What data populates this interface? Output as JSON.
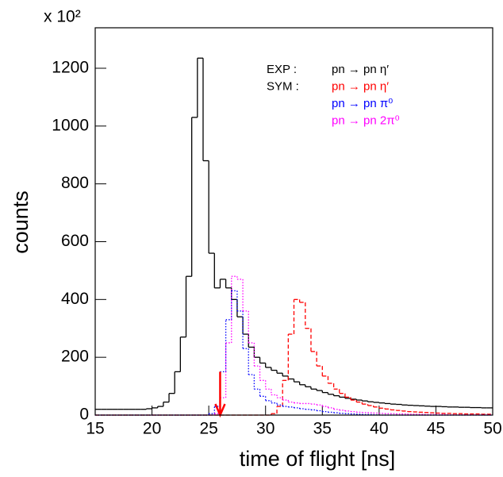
{
  "chart_data": {
    "type": "histogram",
    "x_label": "time of flight  [ns]",
    "y_label": "counts",
    "y_multiplier": "x 10²",
    "xlim": [
      15,
      50
    ],
    "ylim": [
      0,
      1340
    ],
    "xticks": [
      15,
      20,
      25,
      30,
      35,
      40,
      45,
      50
    ],
    "yticks": [
      0,
      200,
      400,
      600,
      800,
      1000,
      1200
    ],
    "bins": [
      15,
      15.5,
      16,
      16.5,
      17,
      17.5,
      18,
      18.5,
      19,
      19.5,
      20,
      20.5,
      21,
      21.5,
      22,
      22.5,
      23,
      23.5,
      24,
      24.5,
      25,
      25.5,
      26,
      26.5,
      27,
      27.5,
      28,
      28.5,
      29,
      29.5,
      30,
      30.5,
      31,
      31.5,
      32,
      32.5,
      33,
      33.5,
      34,
      34.5,
      35,
      35.5,
      36,
      36.5,
      37,
      37.5,
      38,
      38.5,
      39,
      39.5,
      40,
      40.5,
      41,
      41.5,
      42,
      42.5,
      43,
      43.5,
      44,
      44.5,
      45,
      45.5,
      46,
      46.5,
      47,
      47.5,
      48,
      48.5,
      49,
      49.5,
      50
    ],
    "series": [
      {
        "name": "pn → pn η′",
        "group": "EXP :",
        "color": "#000000",
        "style": "solid",
        "values": [
          20,
          20,
          20,
          20,
          20,
          20,
          20,
          20,
          20,
          22,
          25,
          30,
          45,
          75,
          150,
          270,
          480,
          1030,
          1235,
          880,
          560,
          440,
          470,
          440,
          400,
          340,
          280,
          235,
          200,
          180,
          165,
          155,
          145,
          135,
          125,
          115,
          105,
          98,
          90,
          85,
          78,
          72,
          67,
          62,
          58,
          55,
          52,
          49,
          46,
          44,
          42,
          40,
          38,
          37,
          35,
          34,
          33,
          32,
          31,
          30,
          30,
          29,
          28,
          28,
          27,
          27,
          26,
          26,
          25,
          25
        ]
      },
      {
        "name": "pn → pn η′",
        "group": "SYM :",
        "color": "#ff0000",
        "style": "dashed",
        "values": [
          0,
          0,
          0,
          0,
          0,
          0,
          0,
          0,
          0,
          0,
          0,
          0,
          0,
          0,
          0,
          0,
          0,
          0,
          0,
          0,
          0,
          0,
          0,
          0,
          0,
          0,
          0,
          0,
          0,
          0,
          0,
          5,
          30,
          120,
          280,
          400,
          390,
          300,
          220,
          170,
          135,
          110,
          90,
          75,
          62,
          52,
          45,
          38,
          33,
          28,
          24,
          21,
          18,
          16,
          14,
          12,
          11,
          10,
          9,
          8,
          7,
          6,
          6,
          5,
          5,
          4,
          4,
          4,
          3,
          3
        ]
      },
      {
        "name": "pn → pn π⁰",
        "color": "#0000ff",
        "style": "dotted",
        "values": [
          0,
          0,
          0,
          0,
          0,
          0,
          0,
          0,
          0,
          0,
          0,
          0,
          0,
          0,
          0,
          0,
          0,
          0,
          0,
          0,
          5,
          30,
          150,
          330,
          430,
          360,
          230,
          140,
          90,
          65,
          50,
          42,
          35,
          30,
          28,
          25,
          22,
          20,
          18,
          15,
          12,
          10,
          8,
          6,
          5,
          4,
          3,
          2,
          2,
          1,
          0,
          0,
          0,
          0,
          0,
          0,
          0,
          0,
          0,
          0,
          0,
          0,
          0,
          0,
          0,
          0,
          0,
          0,
          0,
          0
        ]
      },
      {
        "name": "pn → pn 2π⁰",
        "color": "#ff00ff",
        "style": "dotted",
        "values": [
          0,
          0,
          0,
          0,
          0,
          0,
          0,
          0,
          0,
          0,
          0,
          0,
          0,
          0,
          0,
          0,
          0,
          0,
          0,
          0,
          0,
          5,
          60,
          250,
          480,
          470,
          360,
          250,
          170,
          120,
          90,
          70,
          60,
          52,
          45,
          42,
          40,
          40,
          38,
          35,
          30,
          25,
          20,
          17,
          14,
          12,
          10,
          9,
          8,
          7,
          6,
          5,
          5,
          4,
          4,
          3,
          3,
          3,
          2,
          2,
          2,
          2,
          1,
          1,
          1,
          1,
          1,
          1,
          1,
          1
        ]
      }
    ],
    "arrow": {
      "x": 26,
      "y": [
        150,
        0
      ],
      "color": "#ff0000"
    }
  }
}
